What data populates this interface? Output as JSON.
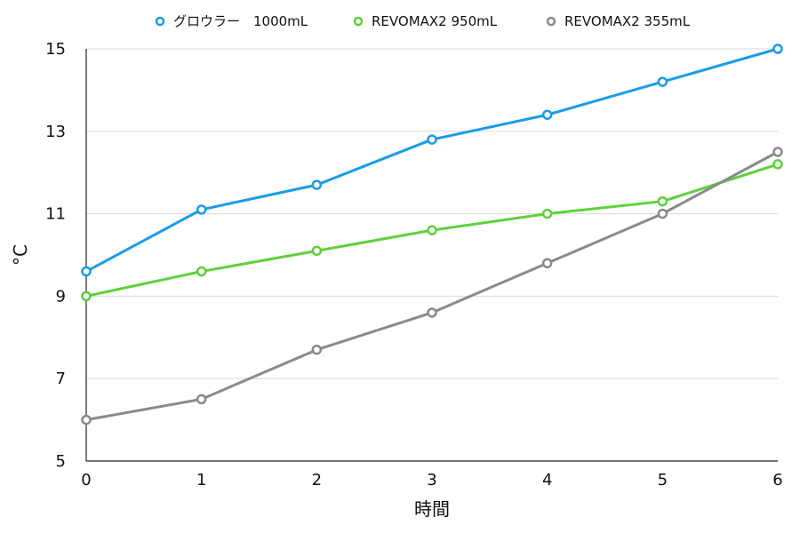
{
  "chart_data": {
    "type": "line",
    "title": "",
    "xlabel": "時間",
    "ylabel": "°C",
    "x": [
      0,
      1,
      2,
      3,
      4,
      5,
      6
    ],
    "xlim": [
      0,
      6
    ],
    "ylim": [
      5,
      15
    ],
    "yticks": [
      5,
      7,
      9,
      11,
      13,
      15
    ],
    "grid": true,
    "legend_position": "top-center",
    "series": [
      {
        "name": "グロウラー　1000mL",
        "color": "#1a9be8",
        "values": [
          9.6,
          11.1,
          11.7,
          12.8,
          13.4,
          14.2,
          15.0
        ]
      },
      {
        "name": "REVOMAX2 950mL",
        "color": "#5ed13a",
        "values": [
          9.0,
          9.6,
          10.1,
          10.6,
          11.0,
          11.3,
          12.2
        ]
      },
      {
        "name": "REVOMAX2 355mL",
        "color": "#8a8a8a",
        "values": [
          6.0,
          6.5,
          7.7,
          8.6,
          9.8,
          11.0,
          12.5
        ]
      }
    ]
  }
}
